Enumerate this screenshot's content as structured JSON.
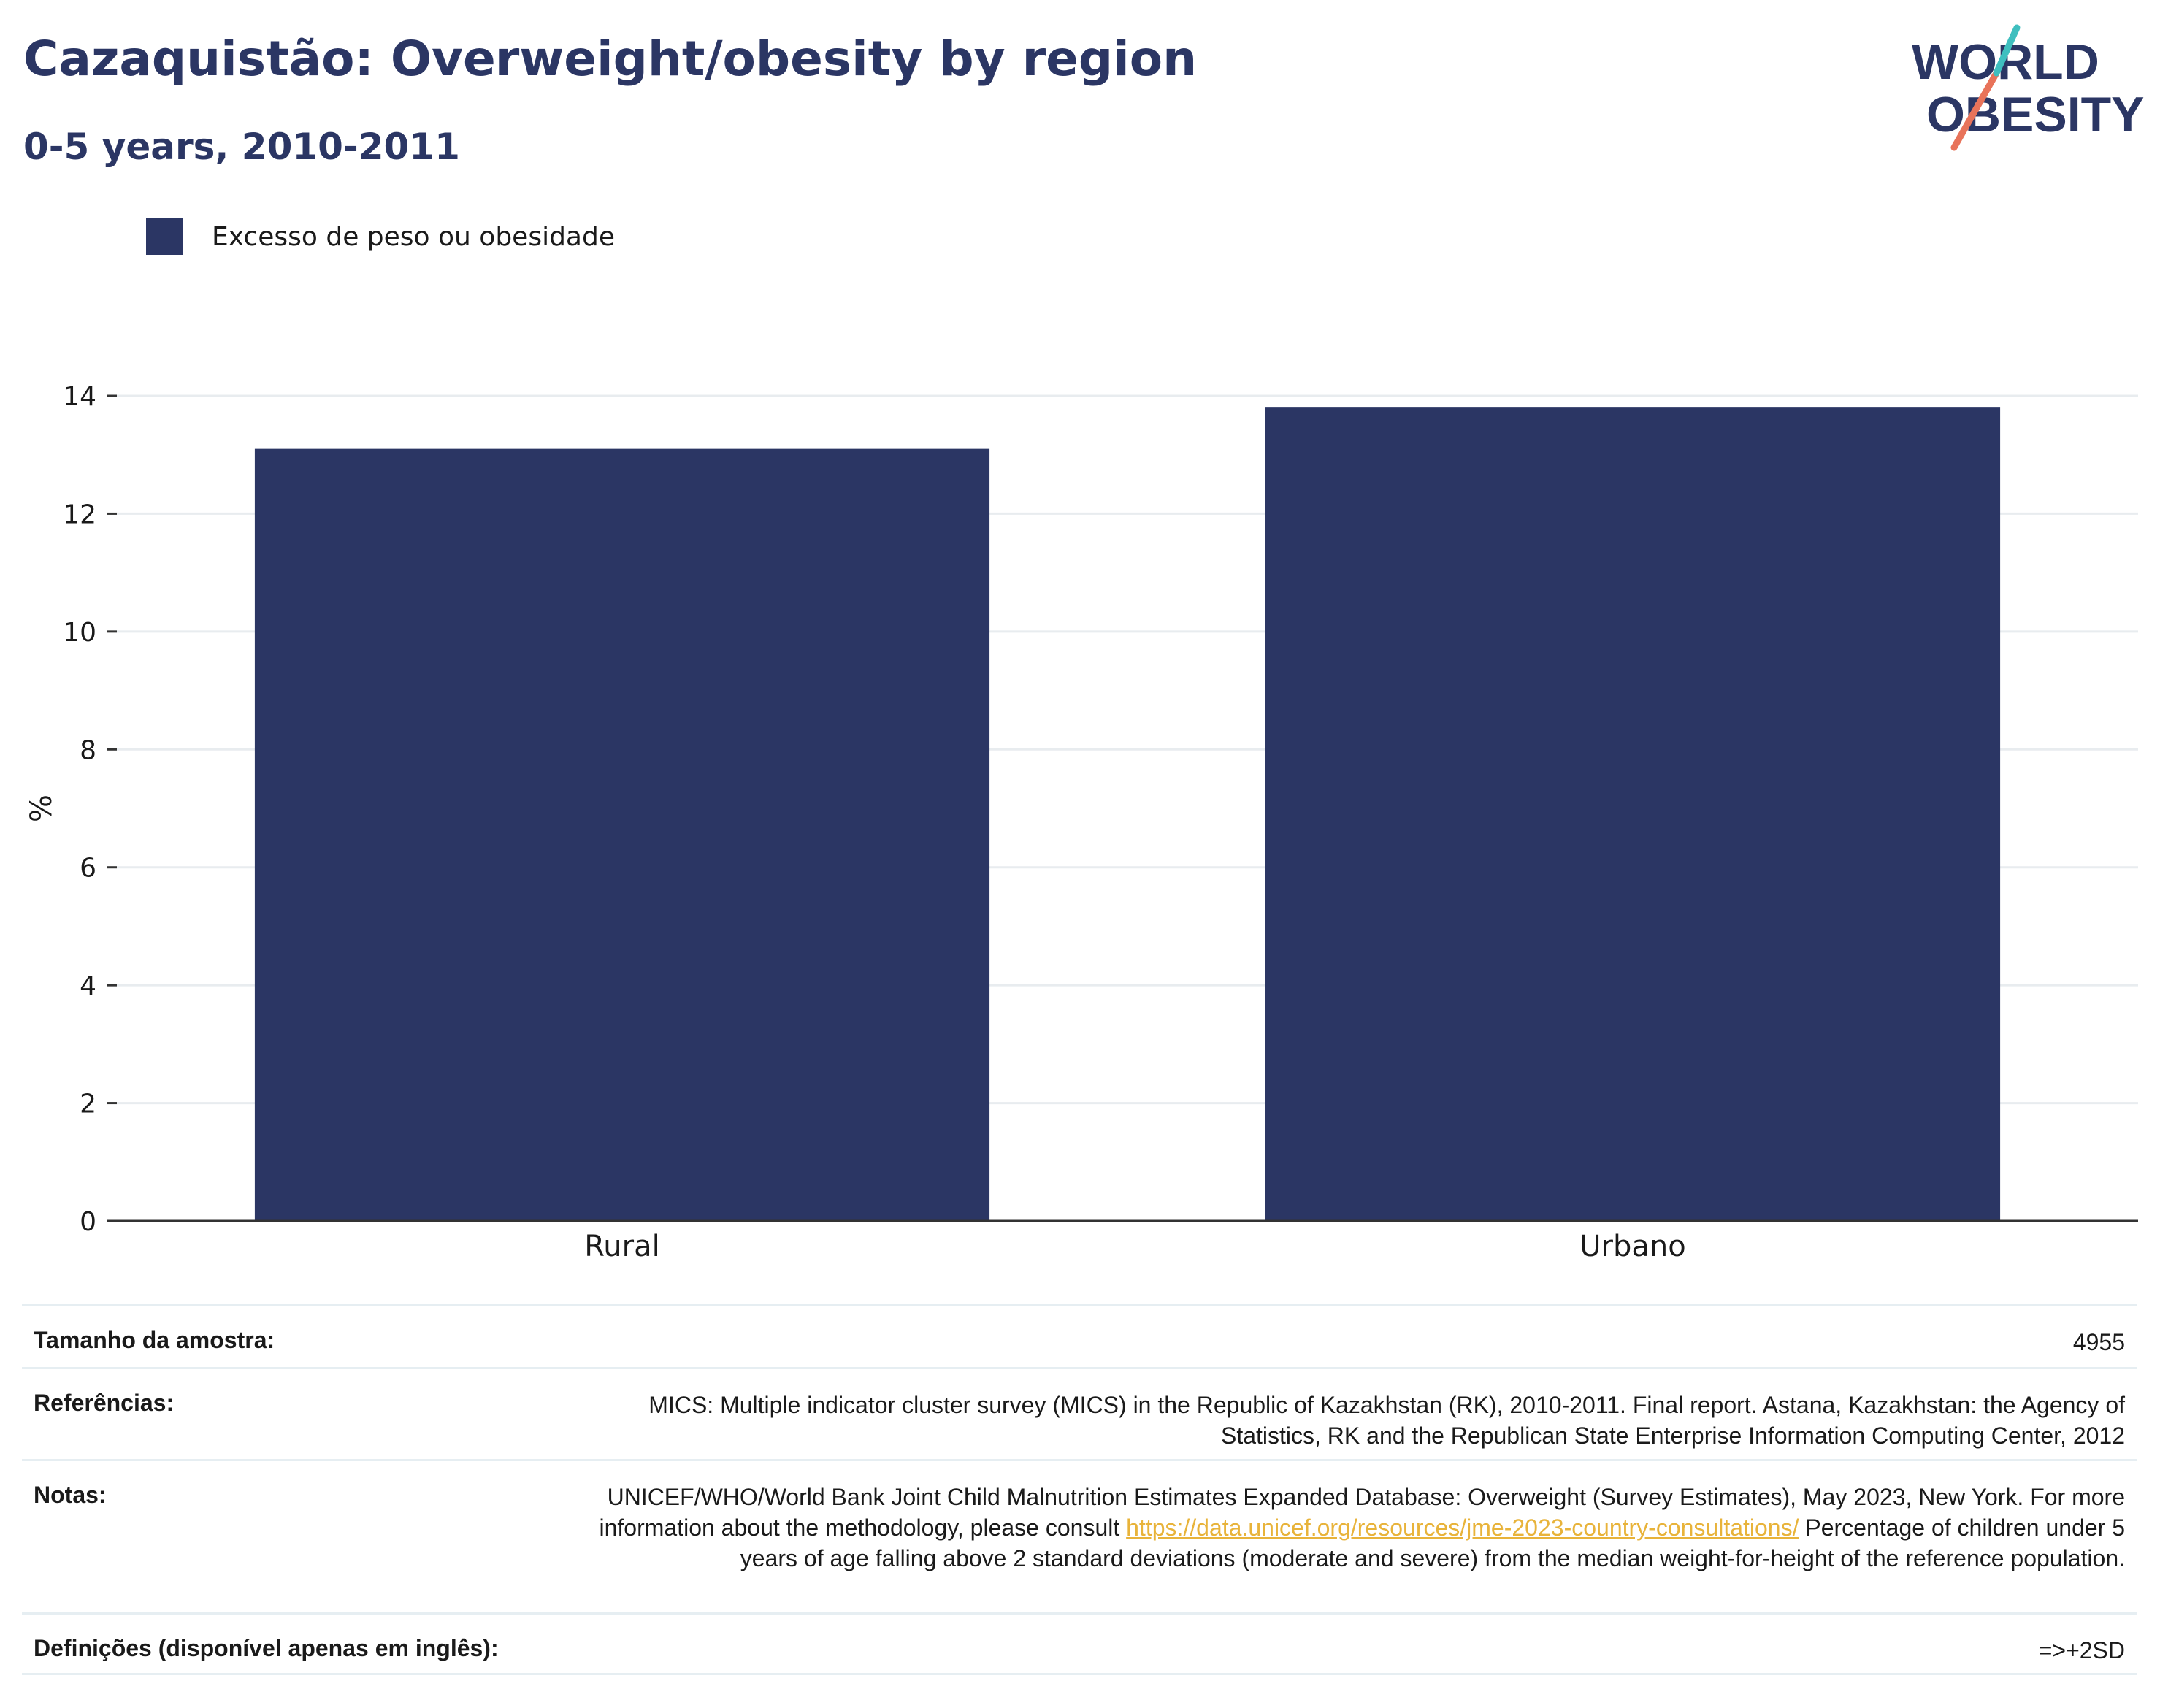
{
  "header": {
    "title": "Cazaquistão: Overweight/obesity by region",
    "subtitle": "0-5 years, 2010-2011"
  },
  "logo": {
    "line1": "WORLD",
    "line2": "OBESITY"
  },
  "colors": {
    "bar": "#2b3664",
    "title": "#2b3664",
    "link": "#e8b33a",
    "logo_teal": "#3fbfbf",
    "logo_coral": "#e8735a"
  },
  "chart_data": {
    "type": "bar",
    "categories": [
      "Rural",
      "Urbano"
    ],
    "series": [
      {
        "name": "Excesso de peso ou obesidade",
        "values": [
          13.1,
          13.8
        ]
      }
    ],
    "ylabel": "%",
    "ylim": [
      0,
      14
    ],
    "yticks": [
      "0",
      "2",
      "4",
      "6",
      "8",
      "10",
      "12",
      "14"
    ],
    "grid": true,
    "legend": "top-left"
  },
  "table": {
    "sample_label": "Tamanho da amostra:",
    "sample_value": "4955",
    "refs_label": "Referências:",
    "refs_value": "MICS: Multiple indicator cluster survey (MICS) in the Republic of Kazakhstan (RK), 2010-2011. Final report. Astana, Kazakhstan: the Agency of Statistics, RK and the Republican State Enterprise Information Computing Center, 2012",
    "notes_label": "Notas:",
    "notes_text1": "UNICEF/WHO/World Bank Joint Child Malnutrition Estimates Expanded Database: Overweight (Survey Estimates), May 2023, New York. For more information about the methodology, please consult ",
    "notes_link": "https://data.unicef.org/resources/jme-2023-country-consultations/",
    "notes_text2": " Percentage of children under 5 years of age falling above 2 standard deviations (moderate and severe) from the median weight-for-height of the reference population.",
    "defs_label": "Definições (disponível apenas em inglês):",
    "defs_value": "=>+2SD"
  }
}
